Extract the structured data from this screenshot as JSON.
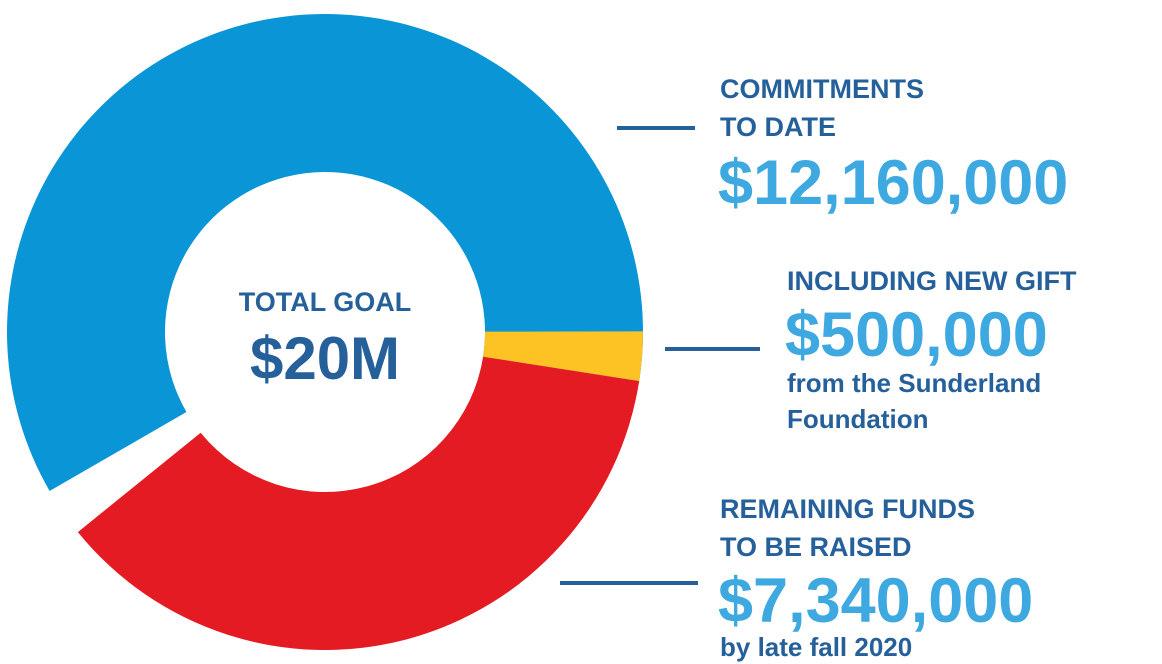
{
  "chart_data": {
    "type": "donut",
    "center_title": "TOTAL GOAL",
    "total": 20000000,
    "total_label": "$20M",
    "labels": [
      [
        "COMMITMENTS",
        "TO DATE"
      ],
      [
        "INCLUDING NEW GIFT"
      ],
      [
        "REMAINING FUNDS",
        "TO BE RAISED"
      ]
    ],
    "values": [
      12160000,
      500000,
      7340000
    ],
    "value_labels": [
      "$12,160,000",
      "$500,000",
      "$7,340,000"
    ],
    "notes": [
      null,
      [
        "from the Sunderland",
        "Foundation"
      ],
      [
        "by late fall 2020"
      ]
    ],
    "colors": [
      "#0a96d6",
      "#fdc324",
      "#e41b23"
    ]
  }
}
